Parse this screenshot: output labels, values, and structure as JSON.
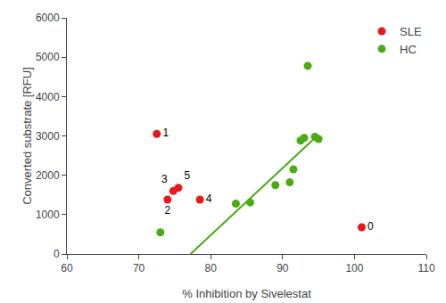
{
  "chart_data": {
    "type": "scatter",
    "xlabel": "% Inhibition by Sivelestat",
    "ylabel": "Converted substrate [RFU]",
    "xlim": [
      60,
      110
    ],
    "ylim": [
      0,
      6000
    ],
    "xticks": [
      60,
      70,
      80,
      90,
      100,
      110
    ],
    "yticks": [
      0,
      1000,
      2000,
      3000,
      4000,
      5000,
      6000
    ],
    "grid": false,
    "legend": "upper right",
    "series": [
      {
        "name": "SLE",
        "type": "scatter",
        "color": "#e8191a",
        "x": [
          72.5,
          74.8,
          75.5,
          74.0,
          78.5,
          101.0
        ],
        "values": [
          3050,
          1600,
          1680,
          1380,
          1380,
          680
        ],
        "labels": [
          "1",
          "3",
          "5",
          "2",
          "4",
          "0"
        ]
      },
      {
        "name": "HC",
        "type": "scatter",
        "color": "#4aab14",
        "x": [
          73.0,
          83.5,
          85.5,
          89.0,
          91.0,
          91.5,
          92.5,
          93.0,
          93.5,
          94.5,
          95.0
        ],
        "values": [
          550,
          1280,
          1310,
          1750,
          1820,
          2150,
          2880,
          2950,
          4780,
          2980,
          2920
        ]
      },
      {
        "type": "line",
        "color": "#4aab14",
        "x": [
          77.2,
          94.5
        ],
        "values": [
          0,
          2950
        ]
      }
    ]
  }
}
